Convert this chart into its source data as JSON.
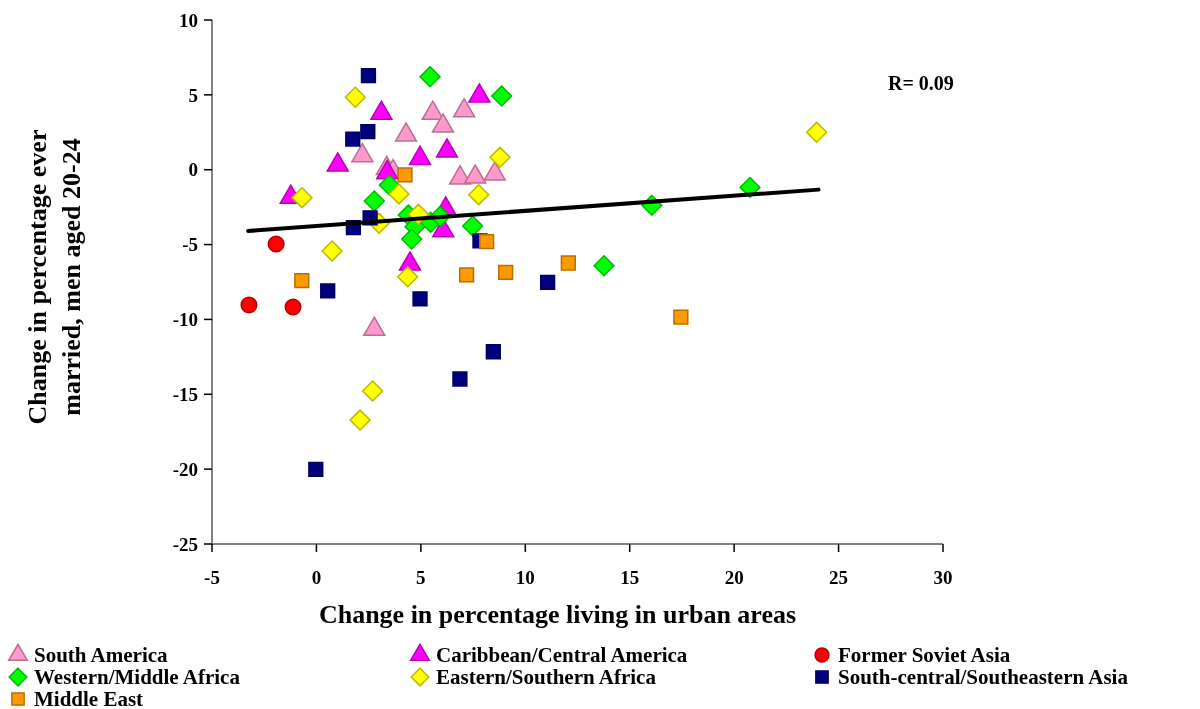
{
  "chart_data": {
    "type": "scatter",
    "xlabel": "Change in percentage living in urban areas",
    "ylabel": "Change in percentage ever married, men aged 20-24",
    "xlim": [
      -5,
      30
    ],
    "ylim": [
      -25,
      10
    ],
    "xticks": [
      -5,
      0,
      5,
      10,
      15,
      20,
      25,
      30
    ],
    "yticks": [
      -25,
      -20,
      -15,
      -10,
      -5,
      0,
      5,
      10
    ],
    "grid": false,
    "legend": "bottom",
    "annotations": [
      "R= 0.09"
    ],
    "series": [
      {
        "name": "South America",
        "color": "#ff99cc",
        "marker": "triangle",
        "x": [
          5.57,
          6.06,
          7.07,
          4.29,
          2.2,
          3.37,
          3.67,
          6.88,
          7.6,
          8.54,
          2.77
        ],
        "values": [
          3.77,
          2.92,
          3.94,
          2.32,
          0.94,
          0.09,
          -0.13,
          -0.55,
          -0.49,
          -0.29,
          -10.66
        ]
      },
      {
        "name": "Caribbean/Central America",
        "color": "#ff00ff",
        "marker": "triangle",
        "x": [
          -1.23,
          1.02,
          3.11,
          3.39,
          4.96,
          6.25,
          7.8,
          6.19,
          6.07,
          4.48
        ],
        "values": [
          -1.84,
          0.31,
          3.77,
          -0.2,
          0.76,
          1.25,
          4.92,
          -2.63,
          -4.07,
          -6.3
        ]
      },
      {
        "name": "Former Soviet Asia",
        "color": "#ff0000",
        "marker": "circle",
        "x": [
          -1.93,
          -3.23,
          -1.12
        ],
        "values": [
          -4.96,
          -9.04,
          -9.17
        ]
      },
      {
        "name": "Western/Middle Africa",
        "color": "#00ff00",
        "marker": "diamond",
        "x": [
          5.44,
          8.87,
          3.49,
          2.77,
          4.4,
          4.72,
          4.56,
          5.47,
          5.92,
          7.48,
          16.06,
          20.76,
          13.77
        ],
        "values": [
          6.21,
          4.92,
          -1.02,
          -2.09,
          -3.03,
          -3.81,
          -4.63,
          -3.51,
          -3.13,
          -3.76,
          -2.38,
          -1.18,
          -6.41
        ]
      },
      {
        "name": "Eastern/Southern Africa",
        "color": "#ffff00",
        "marker": "diamond",
        "x": [
          1.86,
          -0.69,
          3.95,
          7.77,
          8.79,
          4.88,
          3.0,
          0.75,
          4.37,
          2.69,
          2.09,
          23.95
        ],
        "values": [
          4.84,
          -1.87,
          -1.62,
          -1.67,
          0.83,
          -2.98,
          -3.58,
          -5.43,
          -7.15,
          -14.78,
          -16.72,
          2.5
        ]
      },
      {
        "name": "South-central/Southeastern Asia",
        "color": "#000080",
        "marker": "square",
        "x": [
          2.49,
          2.46,
          1.74,
          2.57,
          1.77,
          7.83,
          0.54,
          4.96,
          8.47,
          6.87,
          -0.03,
          11.07
        ],
        "values": [
          6.28,
          2.54,
          2.05,
          -3.21,
          -3.87,
          -4.76,
          -8.1,
          -8.62,
          -12.16,
          -13.98,
          -20.01,
          -7.52
        ]
      },
      {
        "name": "Middle East",
        "color": "#ff9900",
        "marker": "square",
        "x": [
          4.24,
          8.15,
          -0.7,
          7.19,
          9.06,
          12.06,
          17.45
        ],
        "values": [
          -0.35,
          -4.81,
          -7.41,
          -7.03,
          -6.85,
          -6.23,
          -9.84
        ]
      },
      {
        "type": "line",
        "color": "#000000",
        "line_style": "solid",
        "marker": "none",
        "x": [
          -3.27,
          24.04
        ],
        "values": [
          -4.09,
          -1.33
        ]
      }
    ]
  }
}
